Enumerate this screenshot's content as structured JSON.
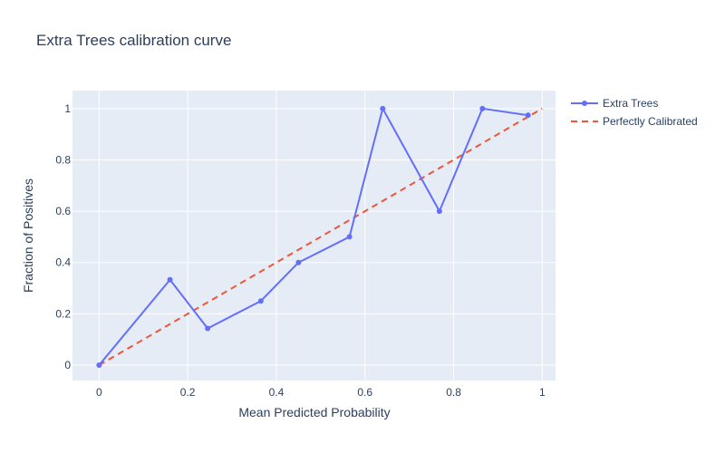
{
  "chart_data": {
    "type": "line",
    "title": "Extra Trees calibration curve",
    "xlabel": "Mean Predicted Probability",
    "ylabel": "Fraction of Positives",
    "xlim": [
      -0.06,
      1.03
    ],
    "ylim": [
      -0.06,
      1.07
    ],
    "xticks": [
      0,
      0.2,
      0.4,
      0.6,
      0.8,
      1
    ],
    "xtick_labels": [
      "0",
      "0.2",
      "0.4",
      "0.6",
      "0.8",
      "1"
    ],
    "yticks": [
      0,
      0.2,
      0.4,
      0.6,
      0.8,
      1
    ],
    "ytick_labels": [
      "0",
      "0.2",
      "0.4",
      "0.6",
      "0.8",
      "1"
    ],
    "grid": true,
    "legend_position": "top-right, outside plot",
    "series": [
      {
        "name": "Extra Trees",
        "mode": "lines+markers",
        "color": "#636efa",
        "x": [
          0.0,
          0.16,
          0.245,
          0.365,
          0.45,
          0.565,
          0.64,
          0.768,
          0.865,
          0.968
        ],
        "y": [
          0.0,
          0.333,
          0.143,
          0.25,
          0.4,
          0.5,
          1.0,
          0.6,
          1.0,
          0.974
        ]
      },
      {
        "name": "Perfectly Calibrated",
        "mode": "lines",
        "dash": "dash",
        "color": "#ef553b",
        "x": [
          0,
          1
        ],
        "y": [
          0,
          1
        ]
      }
    ],
    "colors": {
      "plot_bg": "#e5ecf6",
      "grid": "#ffffff",
      "text": "#2a3f5f"
    }
  }
}
